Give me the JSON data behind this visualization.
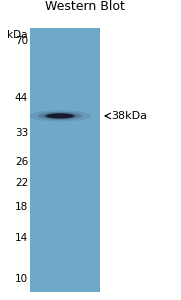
{
  "title": "Western Blot",
  "kda_label": "kDa",
  "marker_labels": [
    70,
    44,
    33,
    26,
    22,
    18,
    14,
    10
  ],
  "band_annotation": "←38kDa",
  "band_kda": 38,
  "gel_bg_color": "#6fa8c8",
  "band_color": "#111122",
  "background_color": "#ffffff",
  "title_fontsize": 9,
  "axis_fontsize": 7.5,
  "annotation_fontsize": 8,
  "fig_width": 1.81,
  "fig_height": 3.0,
  "dpi": 100
}
